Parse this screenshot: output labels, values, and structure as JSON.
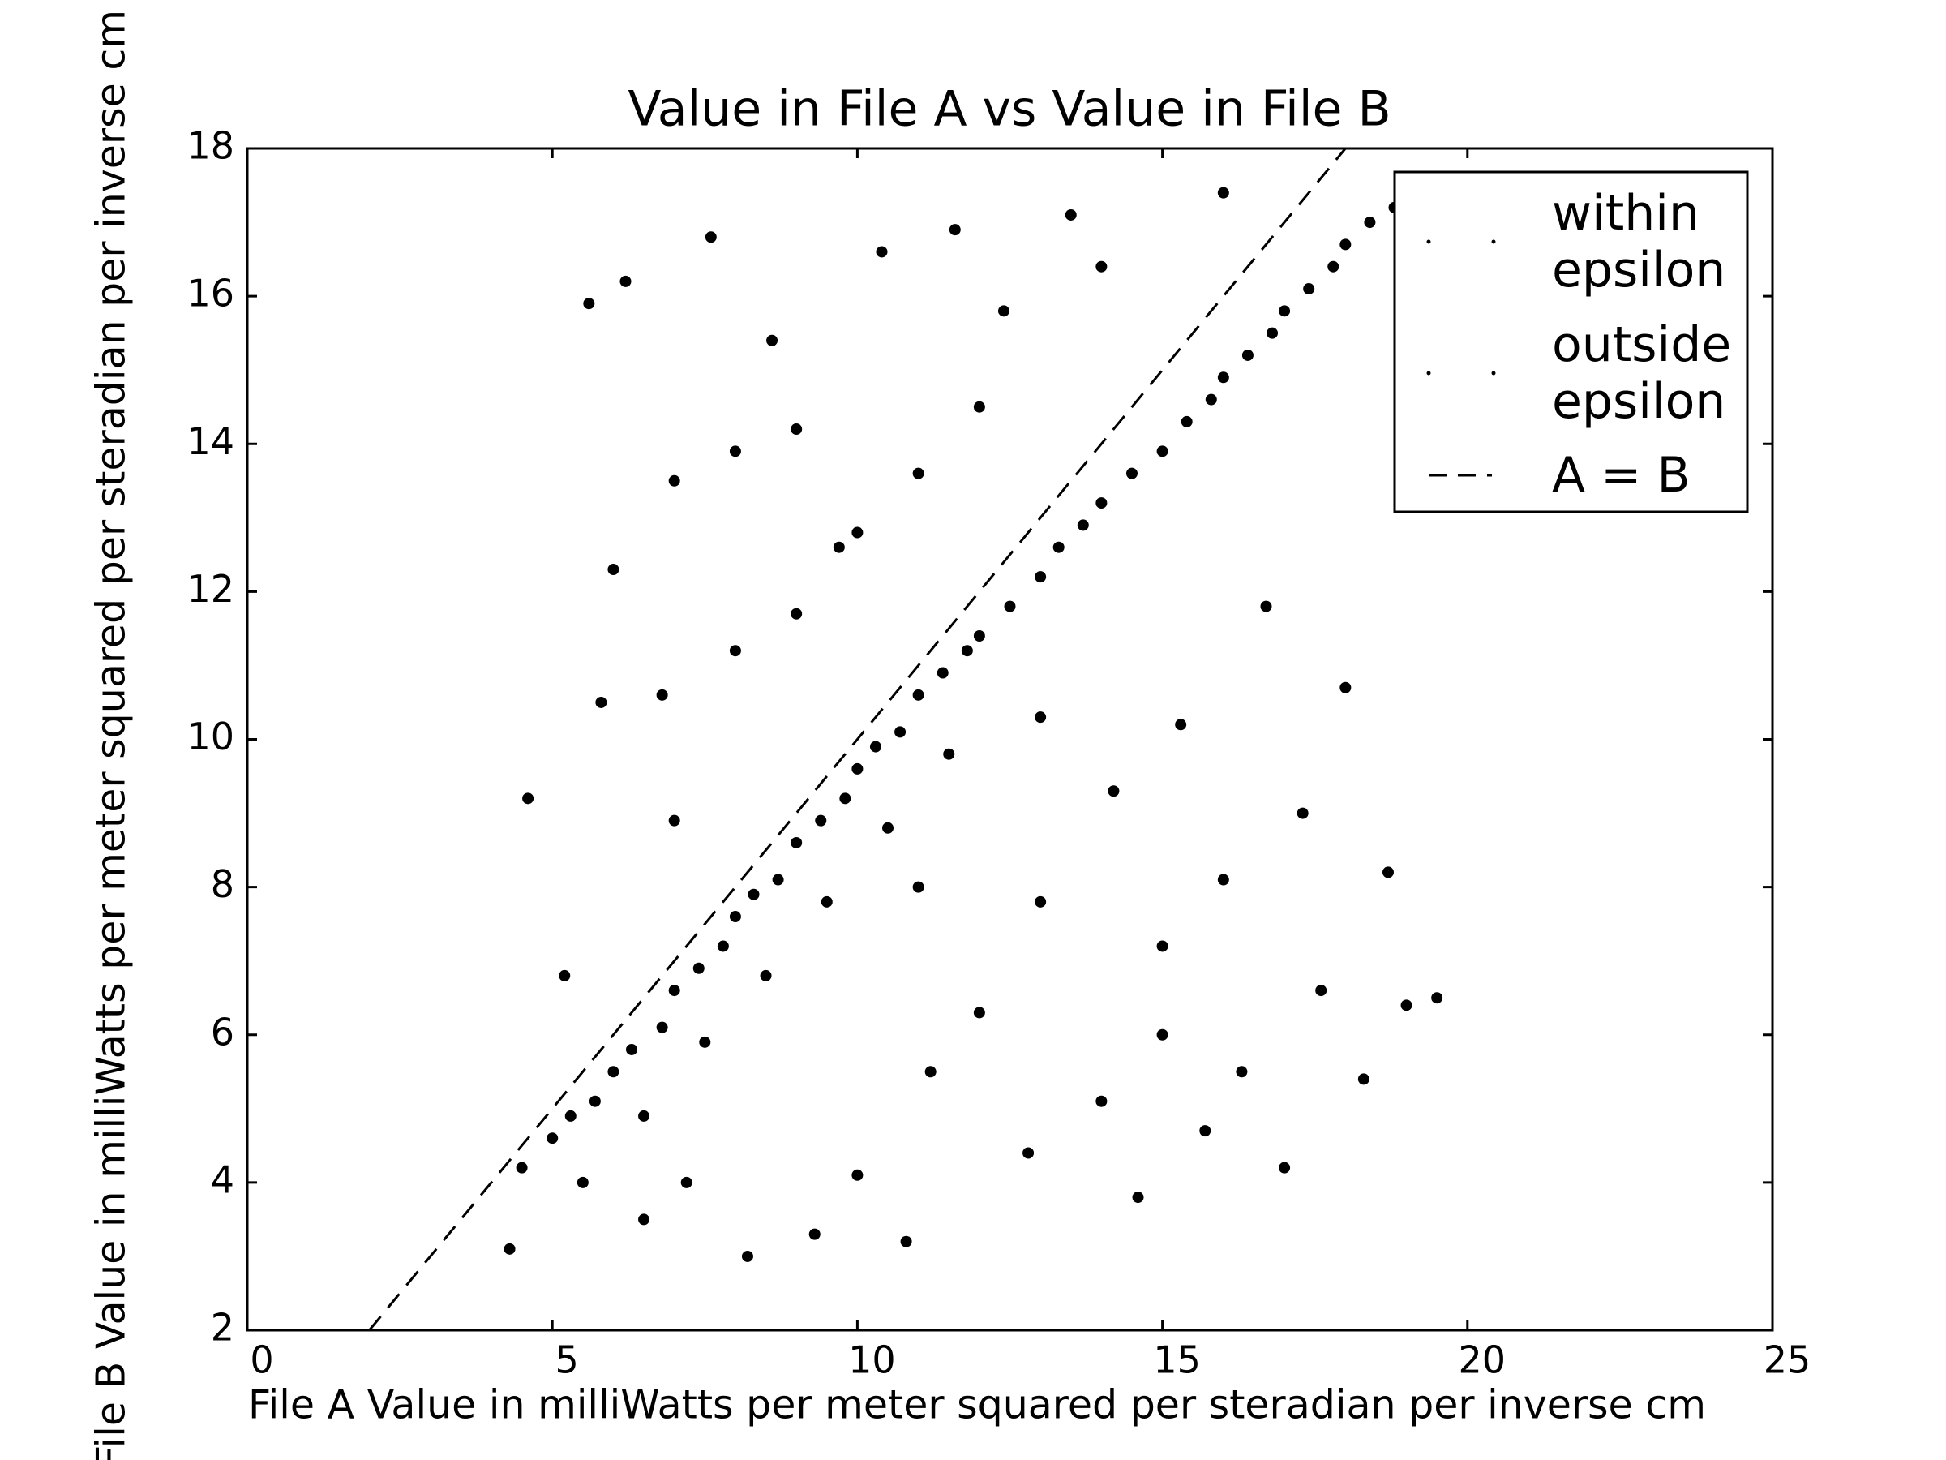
{
  "chart_data": {
    "type": "scatter",
    "title": "Value in File A vs Value in File B",
    "xlabel": "File A Value in milliWatts per meter squared per steradian per inverse cm",
    "ylabel": "File B Value in milliWatts per meter squared per steradian per inverse cm",
    "xlim": [
      0,
      25
    ],
    "ylim": [
      2,
      18
    ],
    "xticks": [
      0,
      5,
      10,
      15,
      20,
      25
    ],
    "yticks": [
      2,
      4,
      6,
      8,
      10,
      12,
      14,
      16,
      18
    ],
    "grid": false,
    "legend": "upper right",
    "series": [
      {
        "name": "within epsilon",
        "color": "#000000",
        "marker": ".",
        "x": [
          4.5,
          5,
          5.3,
          5.7,
          6,
          6.3,
          6.8,
          7,
          7.4,
          7.8,
          8,
          8.3,
          8.7,
          9,
          9.4,
          9.8,
          10,
          10.3,
          10.7,
          11,
          11.4,
          11.8,
          12,
          12.5,
          13,
          13.3,
          13.7,
          14,
          14.5,
          15,
          15.4,
          15.8,
          16,
          16.4,
          16.8,
          17,
          17.4,
          17.8,
          18,
          18.4,
          18.8,
          19,
          19.3,
          5.5,
          6.5,
          7.5,
          8.5,
          9.5,
          10.5,
          11.5
        ],
        "y": [
          4.2,
          4.6,
          4.9,
          5.1,
          5.5,
          5.8,
          6.1,
          6.6,
          6.9,
          7.2,
          7.6,
          7.9,
          8.1,
          8.6,
          8.9,
          9.2,
          9.6,
          9.9,
          10.1,
          10.6,
          10.9,
          11.2,
          11.4,
          11.8,
          12.2,
          12.6,
          12.9,
          13.2,
          13.6,
          13.9,
          14.3,
          14.6,
          14.9,
          15.2,
          15.5,
          15.8,
          16.1,
          16.4,
          16.7,
          17.0,
          17.2,
          17.4,
          17.6,
          4.0,
          4.9,
          5.9,
          6.8,
          7.8,
          8.8,
          9.8
        ]
      },
      {
        "name": "outside epsilon",
        "color": "#000000",
        "marker": ".",
        "x": [
          4.3,
          4.6,
          5.2,
          5.8,
          6.2,
          6.5,
          7,
          7.2,
          7.6,
          8,
          8.2,
          8.6,
          9,
          9.3,
          9.7,
          10,
          10.4,
          10.8,
          11,
          11.2,
          11.6,
          12,
          12.4,
          12.8,
          13,
          13.5,
          14,
          14.2,
          14.6,
          15,
          15.3,
          15.7,
          16,
          16.3,
          16.7,
          17,
          17.3,
          17.6,
          18,
          18.3,
          18.7,
          19,
          19.5,
          6,
          7,
          8,
          9,
          10,
          12,
          14,
          16,
          5.6,
          6.8,
          11,
          13,
          15
        ],
        "y": [
          3.1,
          9.2,
          6.8,
          10.5,
          16.2,
          3.5,
          13.5,
          4.0,
          16.8,
          11.2,
          3.0,
          15.4,
          14.2,
          3.3,
          12.6,
          4.1,
          16.6,
          3.2,
          13.6,
          5.5,
          16.9,
          6.3,
          15.8,
          4.4,
          7.8,
          17.1,
          5.1,
          9.3,
          3.8,
          6.0,
          10.2,
          4.7,
          8.1,
          5.5,
          11.8,
          4.2,
          9.0,
          6.6,
          10.7,
          5.4,
          8.2,
          6.4,
          6.5,
          12.3,
          8.9,
          13.9,
          11.7,
          12.8,
          14.5,
          16.4,
          17.4,
          15.9,
          10.6,
          8.0,
          10.3,
          7.2
        ]
      },
      {
        "name": "A = B",
        "color": "#000000",
        "linestyle": "--",
        "x": [
          2,
          18
        ],
        "y": [
          2,
          18
        ]
      }
    ]
  }
}
